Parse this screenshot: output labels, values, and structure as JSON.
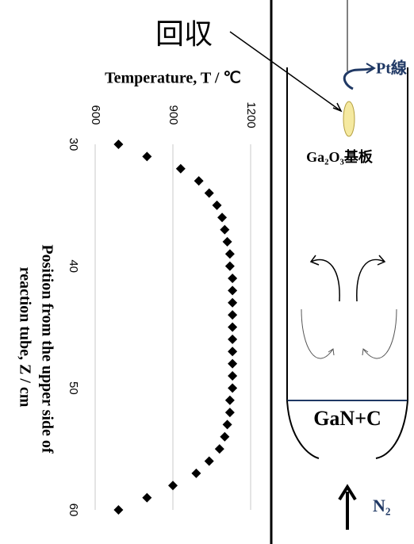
{
  "chart_data": {
    "type": "scatter",
    "orientation": "rotated",
    "title": "Temperature, T / ℃",
    "ylabel_lines": [
      "Position from the upper side of",
      "reaction tube, Z / cm"
    ],
    "x": [
      30,
      31,
      32,
      33,
      34,
      35,
      36,
      37,
      38,
      39,
      40,
      41,
      42,
      43,
      44,
      45,
      46,
      47,
      48,
      49,
      50,
      51,
      52,
      53,
      54,
      55,
      56,
      57,
      58,
      59,
      60
    ],
    "values": [
      690,
      800,
      930,
      1000,
      1040,
      1070,
      1090,
      1100,
      1110,
      1120,
      1120,
      1130,
      1130,
      1130,
      1130,
      1130,
      1130,
      1130,
      1130,
      1130,
      1130,
      1120,
      1120,
      1110,
      1100,
      1080,
      1040,
      990,
      900,
      800,
      690
    ],
    "color": "#000000",
    "xlim": [
      30,
      60
    ],
    "xticks": [
      30,
      40,
      50,
      60
    ],
    "ylim": [
      600,
      1200
    ],
    "yticks": [
      600,
      900,
      1200
    ],
    "grid": true
  },
  "diagram": {
    "recover_label": "回収",
    "pt_label": "Pt線",
    "substrate_label": "Ga₂O₃基板",
    "source_label": "GaN+C",
    "gas_label": "N₂"
  }
}
